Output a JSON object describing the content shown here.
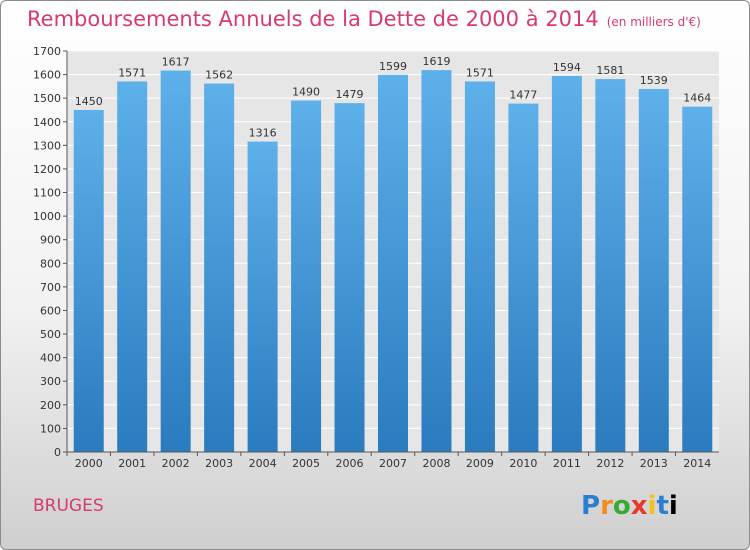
{
  "chart_data": {
    "type": "bar",
    "title": "Remboursements Annuels de la Dette de 2000 à 2014",
    "subtitle": "(en milliers d'€)",
    "categories": [
      "2000",
      "2001",
      "2002",
      "2003",
      "2004",
      "2005",
      "2006",
      "2007",
      "2008",
      "2009",
      "2010",
      "2011",
      "2012",
      "2013",
      "2014"
    ],
    "values": [
      1450,
      1571,
      1617,
      1562,
      1316,
      1490,
      1479,
      1599,
      1619,
      1571,
      1477,
      1594,
      1581,
      1539,
      1464
    ],
    "yticks": [
      0,
      100,
      200,
      300,
      400,
      500,
      600,
      700,
      800,
      900,
      1000,
      1100,
      1200,
      1300,
      1400,
      1500,
      1600,
      1700
    ],
    "ylim": [
      0,
      1700
    ],
    "xlabel": "",
    "ylabel": "",
    "grid": true,
    "colors": {
      "bar_top": "#5eb0ea",
      "bar_bottom": "#2a7bbf",
      "title": "#d63a6f",
      "grid": "#ffffff",
      "plot_bg": "#e6e6e6"
    }
  },
  "footer": {
    "city": "BRUGES",
    "logo_letters": [
      "P",
      "r",
      "o",
      "x",
      "i",
      "t",
      "i"
    ]
  }
}
